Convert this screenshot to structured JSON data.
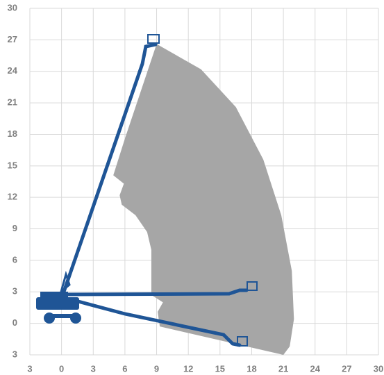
{
  "chart_data": {
    "type": "area",
    "color": "#a6a6a6",
    "grid": true,
    "x": [
      9.0,
      13.2,
      16.5,
      19.1,
      20.8,
      21.8,
      22.0,
      21.6,
      21.0,
      9.3,
      9.1,
      9.6,
      8.5,
      8.5,
      8.1,
      7.0,
      5.7,
      5.5,
      5.9,
      4.9,
      6.0
    ],
    "values": [
      26.6,
      24.2,
      20.6,
      15.6,
      10.3,
      5.0,
      0.4,
      -2.2,
      -3.0,
      -0.3,
      1.1,
      2.0,
      2.7,
      7.0,
      8.7,
      10.3,
      11.3,
      12.2,
      13.3,
      14.1,
      17.6
    ],
    "xlim": [
      -3,
      30
    ],
    "ylim": [
      -3,
      30
    ],
    "xticks": [
      {
        "value": -3,
        "label": "3"
      },
      0,
      3,
      6,
      9,
      12,
      15,
      18,
      21,
      24,
      27,
      30
    ],
    "yticks": [
      {
        "value": -3,
        "label": "3"
      },
      0,
      3,
      6,
      9,
      12,
      15,
      18,
      21,
      24,
      27,
      30
    ]
  }
}
